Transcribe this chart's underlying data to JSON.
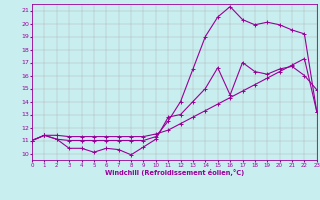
{
  "bg_color": "#c8eef0",
  "grid_color": "#b0b0b0",
  "line_color": "#990099",
  "xlim": [
    0,
    23
  ],
  "ylim": [
    9.5,
    21.5
  ],
  "yticks": [
    10,
    11,
    12,
    13,
    14,
    15,
    16,
    17,
    18,
    19,
    20,
    21
  ],
  "xticks": [
    0,
    1,
    2,
    3,
    4,
    5,
    6,
    7,
    8,
    9,
    10,
    11,
    12,
    13,
    14,
    15,
    16,
    17,
    18,
    19,
    20,
    21,
    22,
    23
  ],
  "xlabel": "Windchill (Refroidissement éolien,°C)",
  "line1_x": [
    0,
    1,
    2,
    3,
    4,
    5,
    6,
    7,
    8,
    9,
    10,
    11,
    12,
    13,
    14,
    15,
    16,
    17,
    18,
    19,
    20,
    21,
    22,
    23
  ],
  "line1_y": [
    11.0,
    11.4,
    11.1,
    10.4,
    10.4,
    10.1,
    10.4,
    10.3,
    9.9,
    10.5,
    11.1,
    12.8,
    13.0,
    14.0,
    15.0,
    16.6,
    14.5,
    17.0,
    16.3,
    16.1,
    16.5,
    16.7,
    16.0,
    14.9
  ],
  "line2_x": [
    0,
    1,
    2,
    3,
    4,
    5,
    6,
    7,
    8,
    9,
    10,
    11,
    12,
    13,
    14,
    15,
    16,
    17,
    18,
    19,
    20,
    21,
    22,
    23
  ],
  "line2_y": [
    11.0,
    11.4,
    11.1,
    11.0,
    11.0,
    11.0,
    11.0,
    11.0,
    11.0,
    11.0,
    11.3,
    12.5,
    14.0,
    16.5,
    19.0,
    20.5,
    21.3,
    20.3,
    19.9,
    20.1,
    19.9,
    19.5,
    19.2,
    13.2
  ],
  "line3_x": [
    0,
    1,
    2,
    3,
    4,
    5,
    6,
    7,
    8,
    9,
    10,
    11,
    12,
    13,
    14,
    15,
    16,
    17,
    18,
    19,
    20,
    21,
    22,
    23
  ],
  "line3_y": [
    11.0,
    11.4,
    11.4,
    11.3,
    11.3,
    11.3,
    11.3,
    11.3,
    11.3,
    11.3,
    11.5,
    11.8,
    12.3,
    12.8,
    13.3,
    13.8,
    14.3,
    14.8,
    15.3,
    15.8,
    16.3,
    16.8,
    17.3,
    13.2
  ]
}
